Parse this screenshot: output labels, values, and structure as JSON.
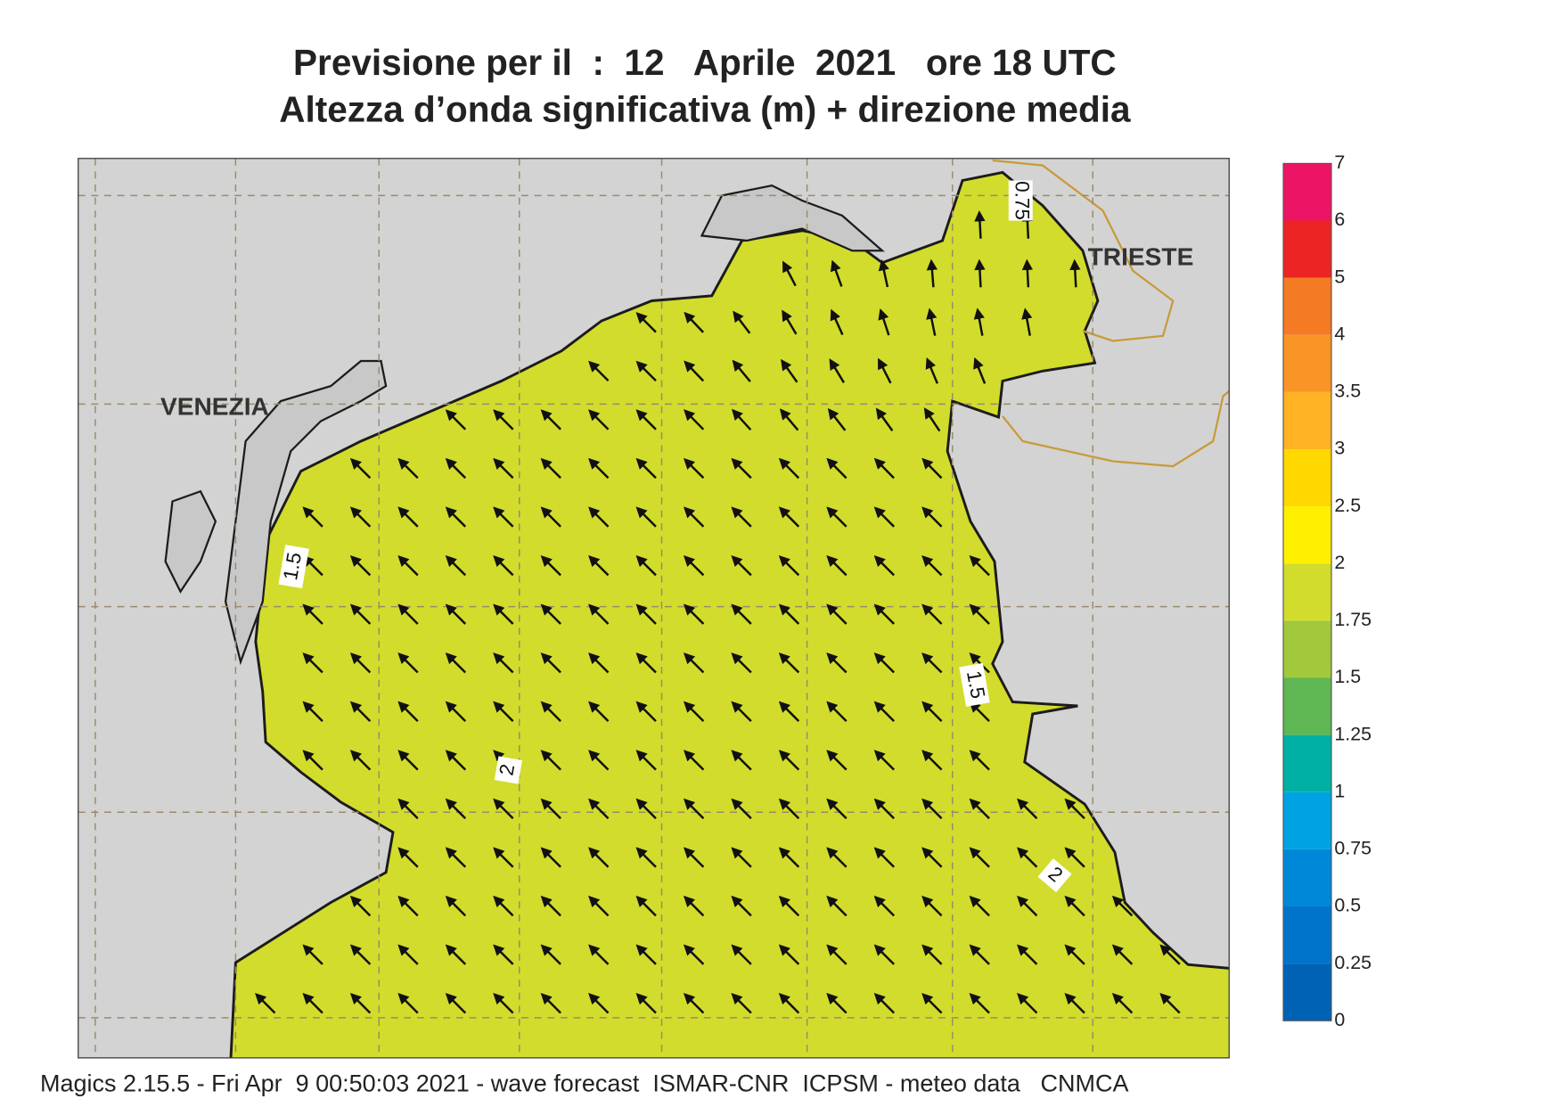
{
  "title": [
    "Previsione per il  :  12   Aprile  2021   ore 18 UTC",
    "Altezza d’onda significativa (m) + direzione media"
  ],
  "places": [
    "VENEZIA",
    "TRIESTE"
  ],
  "contour_labels": [
    "0.75",
    "1.5",
    "1.5",
    "2",
    "2"
  ],
  "colorbar": {
    "levels": [
      0,
      0.25,
      0.5,
      0.75,
      1,
      1.25,
      1.5,
      1.75,
      2,
      2.5,
      3,
      3.5,
      4,
      5,
      6,
      7
    ],
    "colors": [
      "#0062b4",
      "#0074c8",
      "#0088d8",
      "#00a2e4",
      "#00b0a4",
      "#5eb752",
      "#a2c83c",
      "#d2dc2c",
      "#fff000",
      "#ffd800",
      "#ffb224",
      "#fb9426",
      "#f57a24",
      "#ec2424",
      "#ec1464"
    ]
  },
  "footer": "Magics 2.15.5 - Fri Apr  9 00:50:03 2021 - wave forecast  ISMAR-CNR  ICPSM - meteo data   CNMCA"
}
